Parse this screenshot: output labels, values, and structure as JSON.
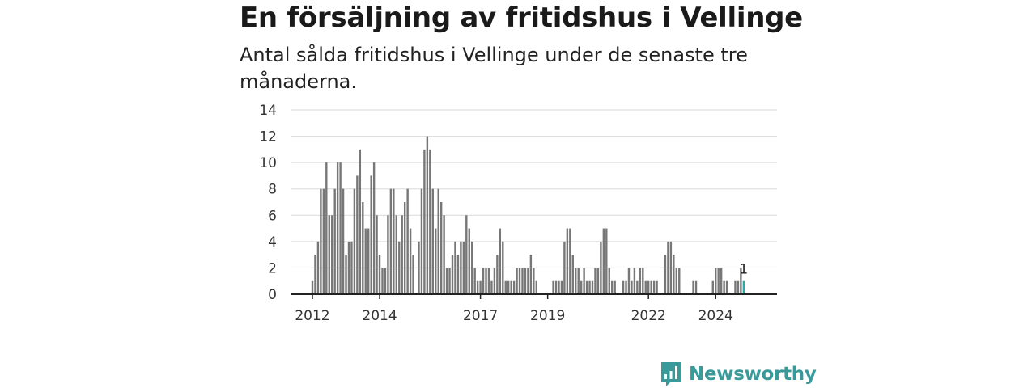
{
  "title": "En försäljning av fritidshus i Vellinge",
  "subtitle": "Antal sålda fritidshus i Vellinge under de senaste tre månaderna.",
  "brand": {
    "name": "Newsworthy",
    "icon": "newsworthy-logo-icon",
    "color": "#3a9a9a"
  },
  "chart_data": {
    "type": "bar",
    "title": "En försäljning av fritidshus i Vellinge",
    "subtitle": "Antal sålda fritidshus i Vellinge under de senaste tre månaderna.",
    "xlabel": "",
    "ylabel": "",
    "ylim": [
      0,
      14
    ],
    "yticks": [
      0,
      2,
      4,
      6,
      8,
      10,
      12,
      14
    ],
    "xticks": [
      "2012",
      "2014",
      "2017",
      "2019",
      "2022",
      "2024"
    ],
    "grid": true,
    "legend": "none",
    "bar_color": "#777777",
    "highlight_color": "#2aa9a9",
    "start_month": "2012-01",
    "end_month": "2025-01",
    "highlight_label": "1",
    "values": [
      1,
      3,
      4,
      8,
      8,
      10,
      6,
      6,
      8,
      10,
      10,
      8,
      3,
      4,
      4,
      8,
      9,
      11,
      7,
      5,
      5,
      9,
      10,
      6,
      3,
      2,
      2,
      6,
      8,
      8,
      6,
      4,
      6,
      7,
      8,
      5,
      3,
      0,
      4,
      8,
      11,
      12,
      11,
      8,
      5,
      8,
      7,
      6,
      2,
      2,
      3,
      4,
      3,
      4,
      4,
      6,
      5,
      4,
      2,
      1,
      1,
      2,
      2,
      2,
      1,
      2,
      3,
      5,
      4,
      1,
      1,
      1,
      1,
      2,
      2,
      2,
      2,
      2,
      3,
      2,
      1,
      0,
      0,
      0,
      0,
      0,
      1,
      1,
      1,
      1,
      4,
      5,
      5,
      3,
      2,
      2,
      1,
      2,
      1,
      1,
      1,
      2,
      2,
      4,
      5,
      5,
      2,
      1,
      1,
      0,
      0,
      1,
      1,
      2,
      1,
      2,
      1,
      2,
      2,
      1,
      1,
      1,
      1,
      1,
      0,
      0,
      3,
      4,
      4,
      3,
      2,
      2,
      0,
      0,
      0,
      0,
      1,
      1,
      0,
      0,
      0,
      0,
      0,
      1,
      2,
      2,
      2,
      1,
      1,
      0,
      0,
      1,
      1,
      2,
      1
    ]
  }
}
